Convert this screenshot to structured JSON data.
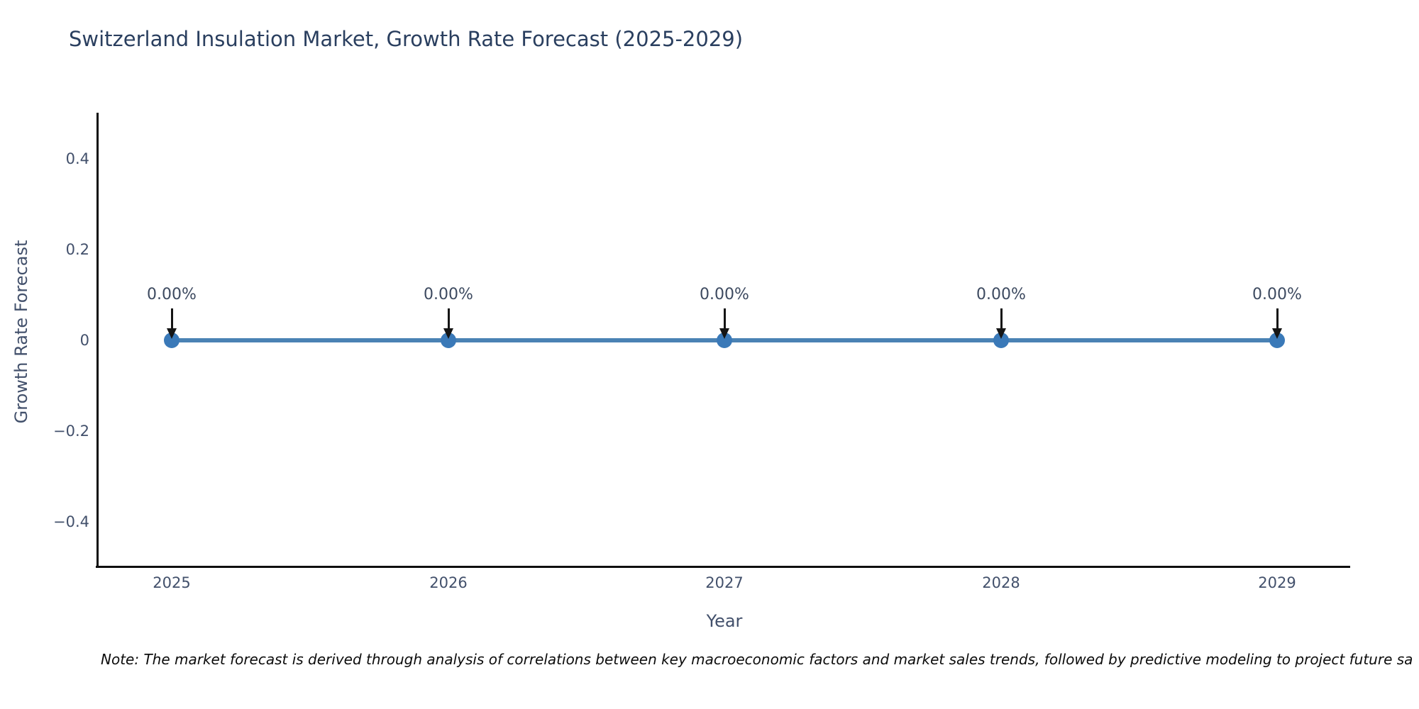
{
  "title": "Switzerland Insulation Market, Growth Rate Forecast (2025-2029)",
  "chart_data": {
    "type": "line",
    "x": [
      "2025",
      "2026",
      "2027",
      "2028",
      "2029"
    ],
    "series": [
      {
        "name": "Growth Rate Forecast",
        "values": [
          0,
          0,
          0,
          0,
          0
        ]
      }
    ],
    "point_labels": [
      "0.00%",
      "0.00%",
      "0.00%",
      "0.00%",
      "0.00%"
    ],
    "xlabel": "Year",
    "ylabel": "Growth Rate Forecast",
    "ylim": [
      -0.5,
      0.5
    ],
    "ytick_labels": [
      "0.4",
      "0.2",
      "0",
      "−0.2",
      "−0.4"
    ],
    "grid": false,
    "legend_position": "none",
    "line_color": "#4a82b4",
    "marker_color": "#3a79b8",
    "annotation_arrow_color": "#151515"
  },
  "footnote": "Note: The market forecast is derived through analysis of correlations between key macroeconomic factors and market sales trends, followed by predictive modeling to project future sa"
}
